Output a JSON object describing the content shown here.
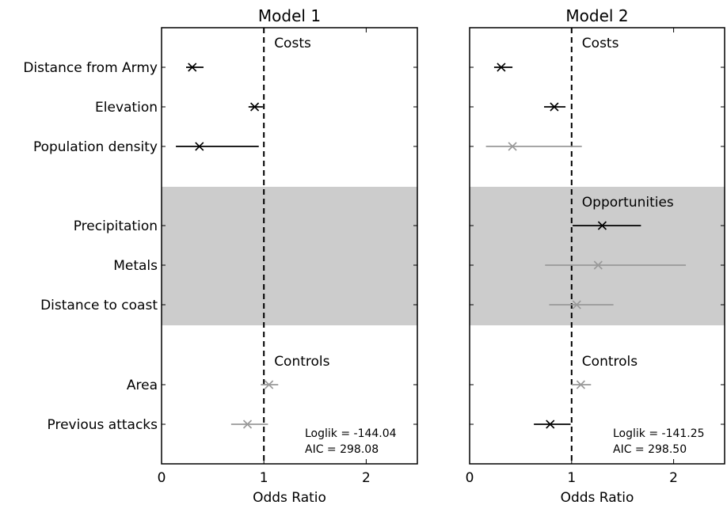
{
  "chart_data": [
    {
      "type": "scatter",
      "subtype": "forest-plot",
      "title": "Model 1",
      "xlabel": "Odds Ratio",
      "xlim": [
        0,
        2.5
      ],
      "xticks": [
        "0",
        "1",
        "2"
      ],
      "reference_line": 1,
      "variables": [
        "Distance from Army",
        "Elevation",
        "Population density",
        "Precipitation",
        "Metals",
        "Distance to coast",
        "Area",
        "Previous attacks"
      ],
      "sections": [
        {
          "label": "Costs",
          "rows": [
            0,
            2
          ],
          "shaded": false,
          "label_shown": true
        },
        {
          "label": "Opportunities",
          "rows": [
            3,
            5
          ],
          "shaded": true,
          "label_shown": false
        },
        {
          "label": "Controls",
          "rows": [
            6,
            7
          ],
          "shaded": false,
          "label_shown": true
        }
      ],
      "points": [
        {
          "variable": "Distance from Army",
          "estimate": 0.3,
          "ci_low": 0.24,
          "ci_high": 0.41,
          "significant": true
        },
        {
          "variable": "Elevation",
          "estimate": 0.91,
          "ci_low": 0.85,
          "ci_high": 0.99,
          "significant": true
        },
        {
          "variable": "Population density",
          "estimate": 0.37,
          "ci_low": 0.14,
          "ci_high": 0.95,
          "significant": true
        },
        {
          "variable": "Area",
          "estimate": 1.05,
          "ci_low": 0.97,
          "ci_high": 1.14,
          "significant": false
        },
        {
          "variable": "Previous attacks",
          "estimate": 0.84,
          "ci_low": 0.68,
          "ci_high": 1.04,
          "significant": false
        }
      ],
      "annotation": [
        "Loglik = -144.04",
        "AIC = 298.08"
      ],
      "grid": false
    },
    {
      "type": "scatter",
      "subtype": "forest-plot",
      "title": "Model 2",
      "xlabel": "Odds Ratio",
      "xlim": [
        0,
        2.5
      ],
      "xticks": [
        "0",
        "1",
        "2"
      ],
      "reference_line": 1,
      "variables": [
        "Distance from Army",
        "Elevation",
        "Population density",
        "Precipitation",
        "Metals",
        "Distance to coast",
        "Area",
        "Previous attacks"
      ],
      "sections": [
        {
          "label": "Costs",
          "rows": [
            0,
            2
          ],
          "shaded": false,
          "label_shown": true
        },
        {
          "label": "Opportunities",
          "rows": [
            3,
            5
          ],
          "shaded": true,
          "label_shown": true
        },
        {
          "label": "Controls",
          "rows": [
            6,
            7
          ],
          "shaded": false,
          "label_shown": true
        }
      ],
      "points": [
        {
          "variable": "Distance from Army",
          "estimate": 0.31,
          "ci_low": 0.24,
          "ci_high": 0.42,
          "significant": true
        },
        {
          "variable": "Elevation",
          "estimate": 0.83,
          "ci_low": 0.73,
          "ci_high": 0.94,
          "significant": true
        },
        {
          "variable": "Population density",
          "estimate": 0.42,
          "ci_low": 0.16,
          "ci_high": 1.1,
          "significant": false
        },
        {
          "variable": "Precipitation",
          "estimate": 1.3,
          "ci_low": 1.01,
          "ci_high": 1.68,
          "significant": true
        },
        {
          "variable": "Metals",
          "estimate": 1.26,
          "ci_low": 0.74,
          "ci_high": 2.12,
          "significant": false
        },
        {
          "variable": "Distance to coast",
          "estimate": 1.05,
          "ci_low": 0.78,
          "ci_high": 1.41,
          "significant": false
        },
        {
          "variable": "Area",
          "estimate": 1.09,
          "ci_low": 1.0,
          "ci_high": 1.19,
          "significant": false
        },
        {
          "variable": "Previous attacks",
          "estimate": 0.79,
          "ci_low": 0.63,
          "ci_high": 0.99,
          "significant": true
        }
      ],
      "annotation": [
        "Loglik = -141.25",
        "AIC = 298.50"
      ],
      "grid": false
    }
  ],
  "colors": {
    "significant": "#000000",
    "not_significant": "#999999",
    "shade": "#cccccc",
    "reference_line": "#000000"
  }
}
